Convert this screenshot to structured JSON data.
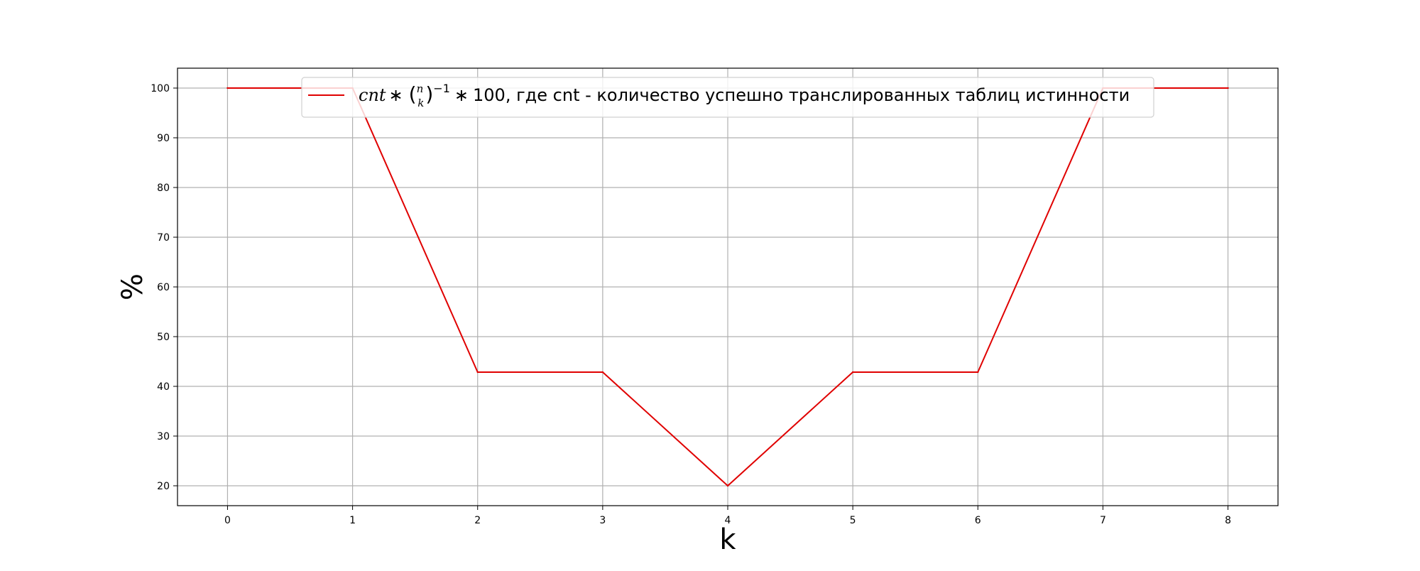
{
  "chart_data": {
    "type": "line",
    "xlabel": "k",
    "ylabel": "%",
    "x": [
      0,
      1,
      2,
      3,
      4,
      5,
      6,
      7,
      8
    ],
    "xlim": [
      -0.4,
      8.4
    ],
    "ylim": [
      16,
      104
    ],
    "xticks": [
      0,
      1,
      2,
      3,
      4,
      5,
      6,
      7,
      8
    ],
    "yticks": [
      20,
      30,
      40,
      50,
      60,
      70,
      80,
      90,
      100
    ],
    "grid": true,
    "legend_position": "top-center",
    "series": [
      {
        "name_math": "cnt * (n k)^-1 * 100",
        "name_text": ", где cnt - количество успешно транслированных таблиц истинности",
        "values": [
          100,
          100,
          42.857,
          42.857,
          20,
          42.857,
          42.857,
          100,
          100
        ],
        "color": "#e00000"
      }
    ]
  }
}
